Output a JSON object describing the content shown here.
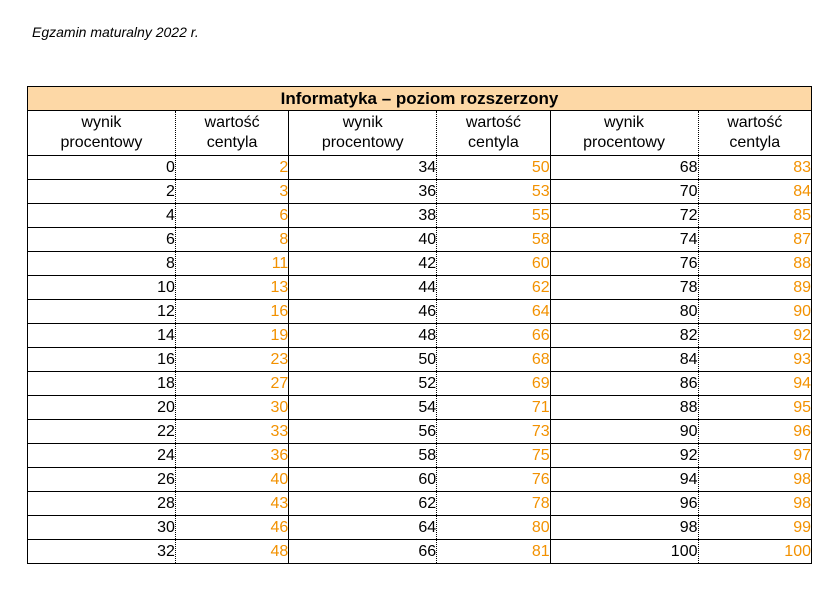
{
  "header": {
    "exam_label": "Egzamin maturalny 2022 r."
  },
  "table": {
    "title": "Informatyka – poziom rozszerzony",
    "headers": [
      [
        "wynik",
        "procentowy"
      ],
      [
        "wartość",
        "centyla"
      ],
      [
        "wynik",
        "procentowy"
      ],
      [
        "wartość",
        "centyla"
      ],
      [
        "wynik",
        "procentowy"
      ],
      [
        "wartość",
        "centyla"
      ]
    ],
    "rows": [
      [
        "0",
        "2",
        "34",
        "50",
        "68",
        "83"
      ],
      [
        "2",
        "3",
        "36",
        "53",
        "70",
        "84"
      ],
      [
        "4",
        "6",
        "38",
        "55",
        "72",
        "85"
      ],
      [
        "6",
        "8",
        "40",
        "58",
        "74",
        "87"
      ],
      [
        "8",
        "11",
        "42",
        "60",
        "76",
        "88"
      ],
      [
        "10",
        "13",
        "44",
        "62",
        "78",
        "89"
      ],
      [
        "12",
        "16",
        "46",
        "64",
        "80",
        "90"
      ],
      [
        "14",
        "19",
        "48",
        "66",
        "82",
        "92"
      ],
      [
        "16",
        "23",
        "50",
        "68",
        "84",
        "93"
      ],
      [
        "18",
        "27",
        "52",
        "69",
        "86",
        "94"
      ],
      [
        "20",
        "30",
        "54",
        "71",
        "88",
        "95"
      ],
      [
        "22",
        "33",
        "56",
        "73",
        "90",
        "96"
      ],
      [
        "24",
        "36",
        "58",
        "75",
        "92",
        "97"
      ],
      [
        "26",
        "40",
        "60",
        "76",
        "94",
        "98"
      ],
      [
        "28",
        "43",
        "62",
        "78",
        "96",
        "98"
      ],
      [
        "30",
        "46",
        "64",
        "80",
        "98",
        "99"
      ],
      [
        "32",
        "48",
        "66",
        "81",
        "100",
        "100"
      ]
    ],
    "colors": {
      "header_bg": "#fdd8a6",
      "centile_text": "#f29100",
      "percent_text": "#000000"
    }
  }
}
